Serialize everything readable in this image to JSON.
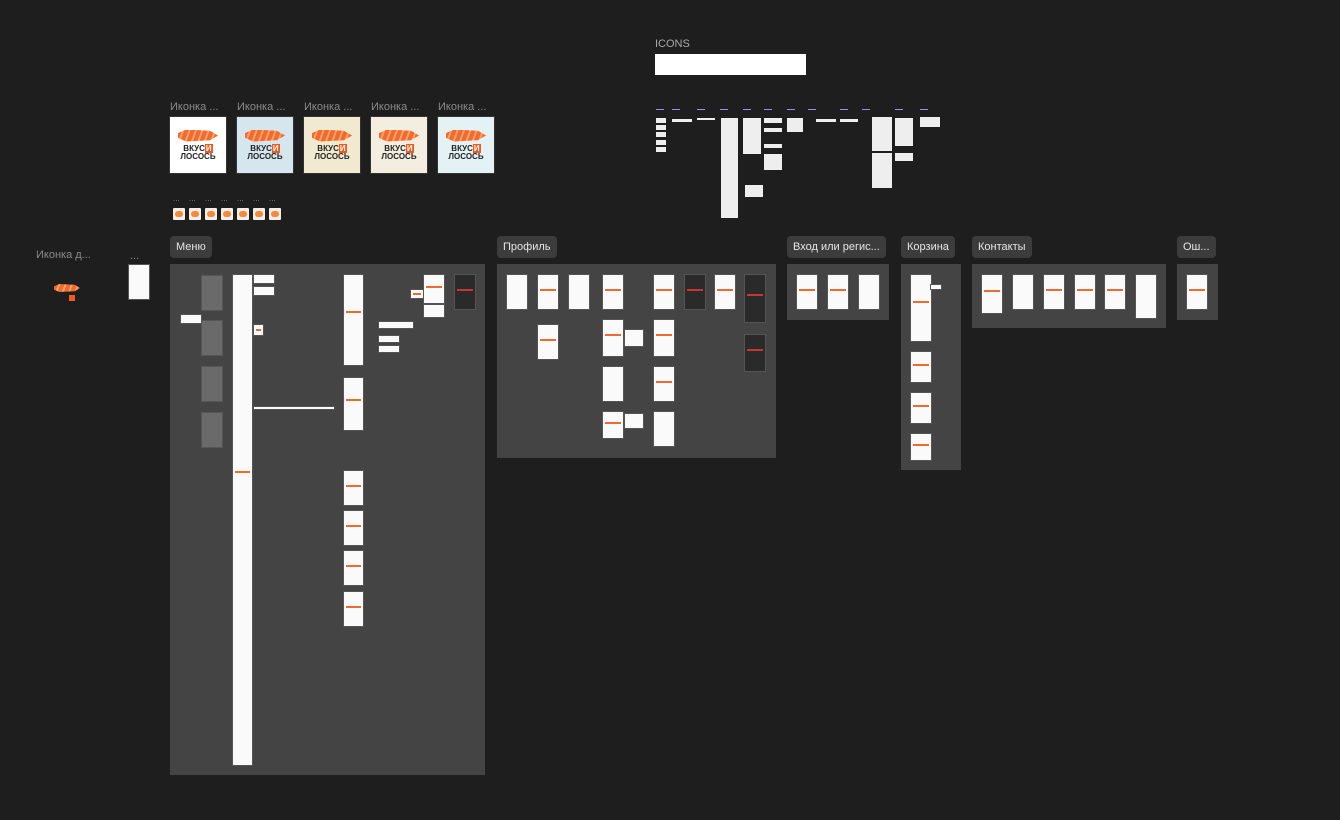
{
  "canvas": {
    "icons_frame": {
      "label": "ICONS"
    },
    "app_icons": [
      {
        "label": "Иконка ...",
        "theme": "white",
        "bg": "#ffffff"
      },
      {
        "label": "Иконка ...",
        "theme": "winter",
        "bg": "#d6e6ee"
      },
      {
        "label": "Иконка ...",
        "theme": "autumn",
        "bg": "#f2ead0"
      },
      {
        "label": "Иконка ...",
        "theme": "spring",
        "bg": "#f3eee0"
      },
      {
        "label": "Иконка ...",
        "theme": "summer",
        "bg": "#e4f2f6"
      }
    ],
    "brand": {
      "line1": "ВКУС",
      "mark": "И",
      "line2": "ЛОСОСЬ"
    },
    "small_icon_labels": [
      "...",
      "...",
      "...",
      "...",
      "...",
      "...",
      "..."
    ],
    "standalone": {
      "icon_label": "Иконка д...",
      "frame_label": "..."
    },
    "sections": [
      {
        "key": "menu",
        "label": "Меню"
      },
      {
        "key": "profile",
        "label": "Профиль"
      },
      {
        "key": "login",
        "label": "Вход или регис..."
      },
      {
        "key": "cart",
        "label": "Корзина"
      },
      {
        "key": "contacts",
        "label": "Контакты"
      },
      {
        "key": "error",
        "label": "Ош..."
      }
    ],
    "colors": {
      "canvas": "#1e1e1e",
      "section": "#444444",
      "accent": "#ef6a2c"
    }
  }
}
